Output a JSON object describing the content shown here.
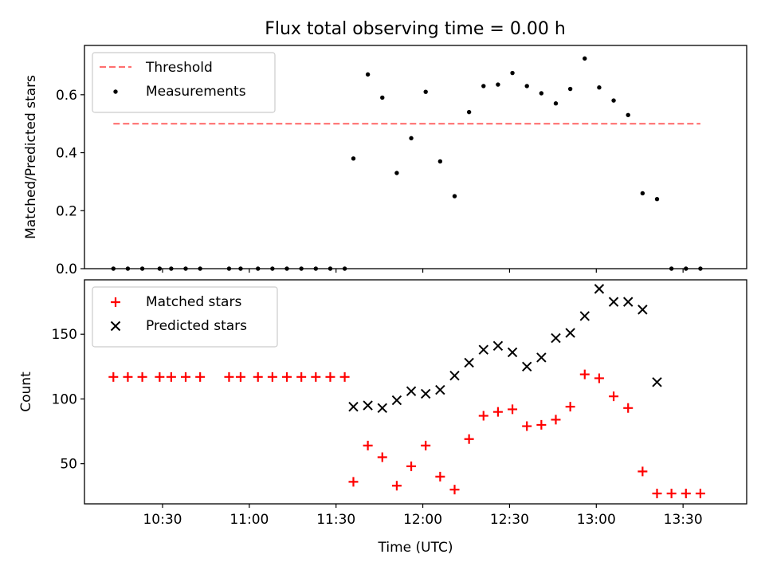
{
  "figure": {
    "title": "Flux total observing time = 0.00 h"
  },
  "chart_data": [
    {
      "type": "scatter",
      "panel": "top",
      "title": "Flux total observing time = 0.00 h",
      "xlabel": "",
      "ylabel": "Matched/Predicted stars",
      "x_unit": "time (UTC, HH:MM)",
      "xlim": [
        "10:03",
        "13:52"
      ],
      "ylim": [
        0,
        0.77
      ],
      "yticks": [
        0.0,
        0.2,
        0.4,
        0.6
      ],
      "ytick_labels": [
        "0.0",
        "0.2",
        "0.4",
        "0.6"
      ],
      "grid": false,
      "legend": "top-left",
      "legend_entries": [
        "Threshold",
        "Measurements"
      ],
      "threshold": {
        "name": "Threshold",
        "value": 0.5,
        "x_start": "10:13",
        "x_end": "13:36",
        "color": "#ff7070",
        "style": "dashed"
      },
      "series": [
        {
          "name": "Measurements",
          "marker": "dot",
          "color": "#000000",
          "points": [
            [
              "10:13",
              0.0
            ],
            [
              "10:18",
              0.0
            ],
            [
              "10:23",
              0.0
            ],
            [
              "10:29",
              0.0
            ],
            [
              "10:33",
              0.0
            ],
            [
              "10:38",
              0.0
            ],
            [
              "10:43",
              0.0
            ],
            [
              "10:53",
              0.0
            ],
            [
              "10:57",
              0.0
            ],
            [
              "11:03",
              0.0
            ],
            [
              "11:08",
              0.0
            ],
            [
              "11:13",
              0.0
            ],
            [
              "11:18",
              0.0
            ],
            [
              "11:23",
              0.0
            ],
            [
              "11:28",
              0.0
            ],
            [
              "11:33",
              0.0
            ],
            [
              "11:36",
              0.38
            ],
            [
              "11:41",
              0.67
            ],
            [
              "11:46",
              0.59
            ],
            [
              "11:51",
              0.33
            ],
            [
              "11:56",
              0.45
            ],
            [
              "12:01",
              0.61
            ],
            [
              "12:06",
              0.37
            ],
            [
              "12:11",
              0.25
            ],
            [
              "12:16",
              0.54
            ],
            [
              "12:21",
              0.63
            ],
            [
              "12:26",
              0.635
            ],
            [
              "12:31",
              0.675
            ],
            [
              "12:36",
              0.63
            ],
            [
              "12:41",
              0.605
            ],
            [
              "12:46",
              0.57
            ],
            [
              "12:51",
              0.62
            ],
            [
              "12:56",
              0.725
            ],
            [
              "13:01",
              0.625
            ],
            [
              "13:06",
              0.58
            ],
            [
              "13:11",
              0.53
            ],
            [
              "13:16",
              0.26
            ],
            [
              "13:21",
              0.24
            ],
            [
              "13:26",
              0.0
            ],
            [
              "13:31",
              0.0
            ],
            [
              "13:36",
              0.0
            ]
          ]
        }
      ]
    },
    {
      "type": "scatter",
      "panel": "bottom",
      "xlabel": "Time (UTC)",
      "ylabel": "Count",
      "x_unit": "time (UTC, HH:MM)",
      "xlim": [
        "10:03",
        "13:52"
      ],
      "ylim": [
        19,
        192
      ],
      "xticks": [
        "10:30",
        "11:00",
        "11:30",
        "12:00",
        "12:30",
        "13:00",
        "13:30"
      ],
      "yticks": [
        50,
        100,
        150
      ],
      "ytick_labels": [
        "50",
        "100",
        "150"
      ],
      "grid": false,
      "legend": "top-left",
      "legend_entries": [
        "Matched stars",
        "Predicted stars"
      ],
      "series": [
        {
          "name": "Matched stars",
          "marker": "plus",
          "color": "#ff0000",
          "points": [
            [
              "10:13",
              117
            ],
            [
              "10:18",
              117
            ],
            [
              "10:23",
              117
            ],
            [
              "10:29",
              117
            ],
            [
              "10:33",
              117
            ],
            [
              "10:38",
              117
            ],
            [
              "10:43",
              117
            ],
            [
              "10:53",
              117
            ],
            [
              "10:57",
              117
            ],
            [
              "11:03",
              117
            ],
            [
              "11:08",
              117
            ],
            [
              "11:13",
              117
            ],
            [
              "11:18",
              117
            ],
            [
              "11:23",
              117
            ],
            [
              "11:28",
              117
            ],
            [
              "11:33",
              117
            ],
            [
              "11:36",
              36
            ],
            [
              "11:41",
              64
            ],
            [
              "11:46",
              55
            ],
            [
              "11:51",
              33
            ],
            [
              "11:56",
              48
            ],
            [
              "12:01",
              64
            ],
            [
              "12:06",
              40
            ],
            [
              "12:11",
              30
            ],
            [
              "12:16",
              69
            ],
            [
              "12:21",
              87
            ],
            [
              "12:26",
              90
            ],
            [
              "12:31",
              92
            ],
            [
              "12:36",
              79
            ],
            [
              "12:41",
              80
            ],
            [
              "12:46",
              84
            ],
            [
              "12:51",
              94
            ],
            [
              "12:56",
              119
            ],
            [
              "13:01",
              116
            ],
            [
              "13:06",
              102
            ],
            [
              "13:11",
              93
            ],
            [
              "13:16",
              44
            ],
            [
              "13:21",
              27
            ],
            [
              "13:26",
              27
            ],
            [
              "13:31",
              27
            ],
            [
              "13:36",
              27
            ]
          ]
        },
        {
          "name": "Predicted stars",
          "marker": "x",
          "color": "#000000",
          "points": [
            [
              "11:36",
              94
            ],
            [
              "11:41",
              95
            ],
            [
              "11:46",
              93
            ],
            [
              "11:51",
              99
            ],
            [
              "11:56",
              106
            ],
            [
              "12:01",
              104
            ],
            [
              "12:06",
              107
            ],
            [
              "12:11",
              118
            ],
            [
              "12:16",
              128
            ],
            [
              "12:21",
              138
            ],
            [
              "12:26",
              141
            ],
            [
              "12:31",
              136
            ],
            [
              "12:36",
              125
            ],
            [
              "12:41",
              132
            ],
            [
              "12:46",
              147
            ],
            [
              "12:51",
              151
            ],
            [
              "12:56",
              164
            ],
            [
              "13:01",
              185
            ],
            [
              "13:06",
              175
            ],
            [
              "13:11",
              175
            ],
            [
              "13:16",
              169
            ],
            [
              "13:21",
              113
            ]
          ]
        }
      ]
    }
  ]
}
